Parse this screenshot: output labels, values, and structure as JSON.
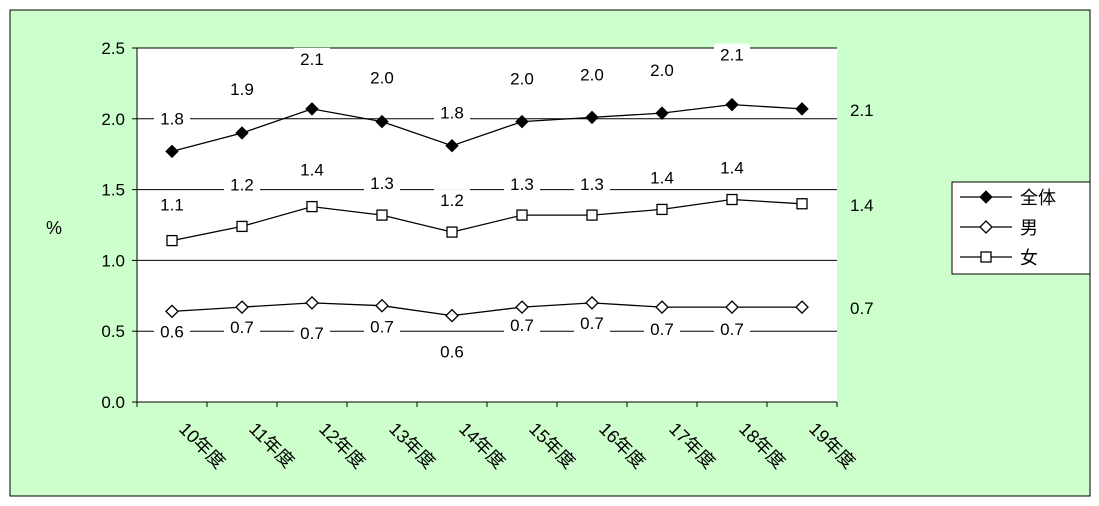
{
  "chart_data": {
    "type": "line",
    "title": "",
    "xlabel": "",
    "ylabel": "%",
    "ylim": [
      0,
      2.5
    ],
    "y_ticks": [
      "0.0",
      "0.5",
      "1.0",
      "1.5",
      "2.0",
      "2.5"
    ],
    "categories": [
      "10年度",
      "11年度",
      "12年度",
      "13年度",
      "14年度",
      "15年度",
      "16年度",
      "17年度",
      "18年度",
      "19年度"
    ],
    "series": [
      {
        "name": "全体",
        "marker": "filled-diamond",
        "values": [
          1.77,
          1.9,
          2.07,
          1.98,
          1.81,
          1.98,
          2.01,
          2.04,
          2.1,
          2.07
        ],
        "labels": [
          "1.8",
          "1.9",
          "2.1",
          "2.0",
          "1.8",
          "2.0",
          "2.0",
          "2.0",
          "2.1",
          "2.1"
        ]
      },
      {
        "name": "男",
        "marker": "open-diamond",
        "values": [
          0.64,
          0.67,
          0.7,
          0.68,
          0.61,
          0.67,
          0.7,
          0.67,
          0.67,
          0.67
        ],
        "labels": [
          "0.6",
          "0.7",
          "0.7",
          "0.7",
          "0.6",
          "0.7",
          "0.7",
          "0.7",
          "0.7",
          "0.7"
        ]
      },
      {
        "name": "女",
        "marker": "open-square",
        "values": [
          1.14,
          1.24,
          1.38,
          1.32,
          1.2,
          1.32,
          1.32,
          1.36,
          1.43,
          1.4
        ],
        "labels": [
          "1.1",
          "1.2",
          "1.4",
          "1.3",
          "1.2",
          "1.3",
          "1.3",
          "1.4",
          "1.4",
          "1.4"
        ]
      }
    ],
    "legend_position": "right",
    "gridlines": "horizontal",
    "colors": {
      "background": "#ccffcc",
      "plot_area": "#ffffff",
      "line": "#000000",
      "end_label_background": "#ccffcc"
    }
  }
}
